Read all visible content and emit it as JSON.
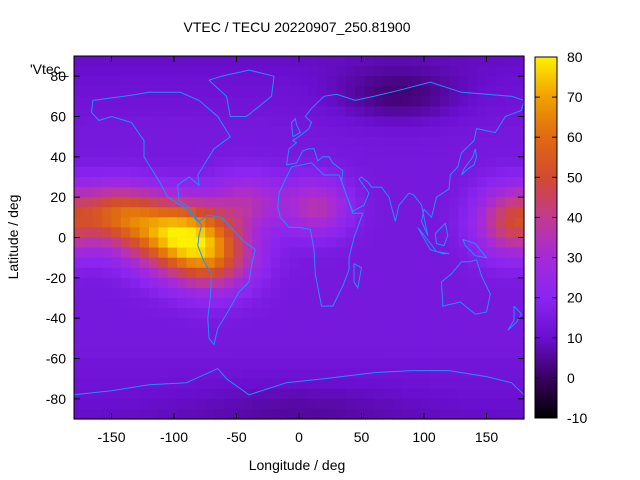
{
  "chart_data": {
    "type": "heatmap",
    "title": "VTEC / TECU 20220907_250.81900",
    "xlabel": "Longitude / deg",
    "ylabel": "Latitude / deg",
    "series_label": "'Vtec_",
    "xlim": [
      -180,
      180
    ],
    "ylim": [
      -90,
      90
    ],
    "x_ticks": [
      -150,
      -100,
      -50,
      0,
      50,
      100,
      150
    ],
    "y_ticks": [
      -80,
      -60,
      -40,
      -20,
      0,
      20,
      40,
      60,
      80
    ],
    "colorbar": {
      "range": [
        -10,
        80
      ],
      "ticks": [
        -10,
        0,
        10,
        20,
        30,
        40,
        50,
        60,
        70,
        80
      ],
      "colors": [
        "#000000",
        "#3a0060",
        "#6a0fd0",
        "#8a25f0",
        "#a62ad8",
        "#c23a90",
        "#d24a30",
        "#e06a10",
        "#f0a000",
        "#fff000"
      ]
    },
    "field_features": [
      {
        "lon": -100,
        "lat": 2,
        "value": 68
      },
      {
        "lon": -140,
        "lat": 10,
        "value": 48
      },
      {
        "lon": -70,
        "lat": -10,
        "value": 50
      },
      {
        "lon": 15,
        "lat": 15,
        "value": 35
      },
      {
        "lon": 170,
        "lat": 8,
        "value": 46
      },
      {
        "lon": 80,
        "lat": 70,
        "value": 4
      },
      {
        "lon": 0,
        "lat": -85,
        "value": 10
      }
    ],
    "background_value": 14,
    "coastline_color": "#1e90ff"
  }
}
